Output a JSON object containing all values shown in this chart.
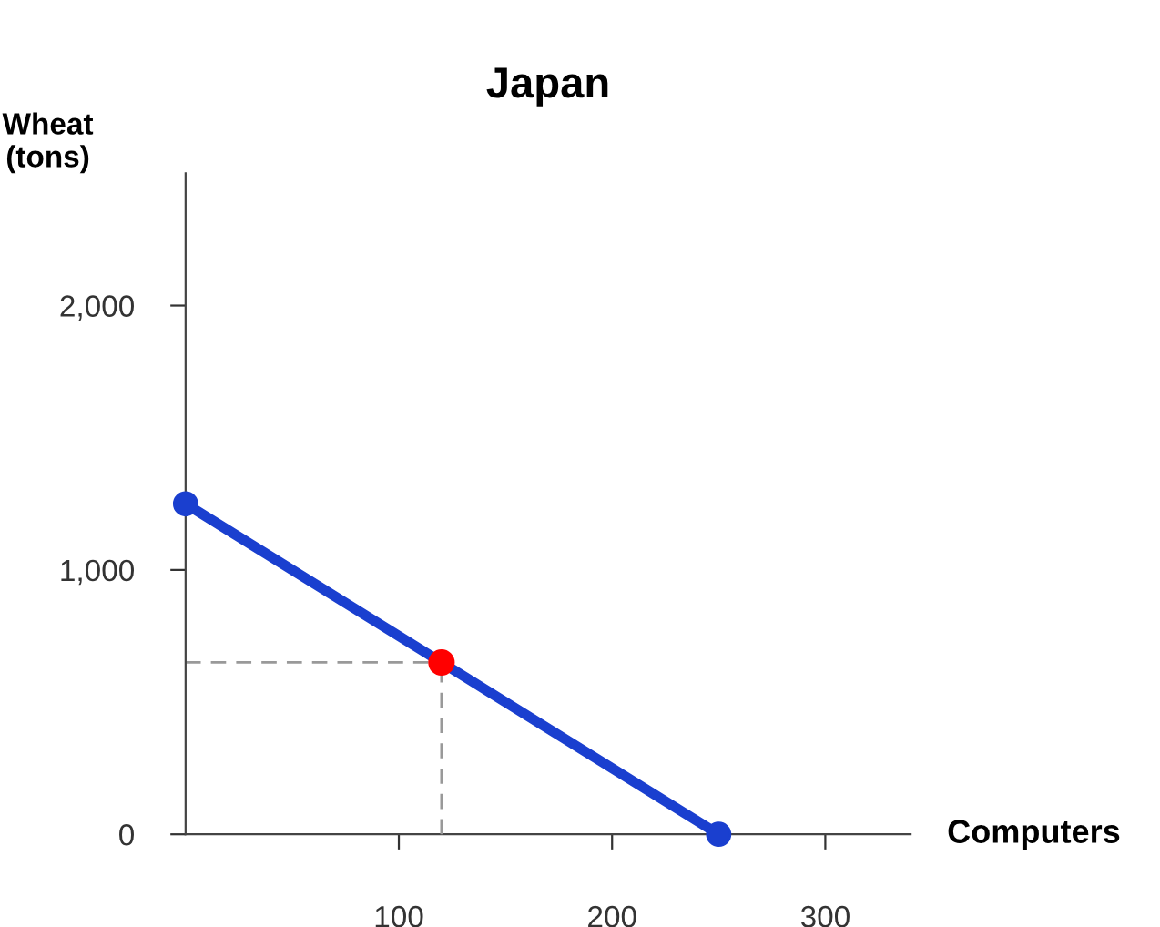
{
  "chart_data": {
    "type": "line",
    "title": "Japan",
    "xlabel": "Computers",
    "ylabel": "Wheat\n(tons)",
    "xlim": [
      0,
      340
    ],
    "ylim": [
      0,
      2500
    ],
    "xticks": [
      100,
      200,
      300
    ],
    "yticks": [
      {
        "value": 0,
        "label": "0"
      },
      {
        "value": 1000,
        "label": "1,000"
      },
      {
        "value": 2000,
        "label": "2,000"
      }
    ],
    "grid": false,
    "legend": false,
    "series": [
      {
        "x": [
          0,
          120
        ],
        "values": [
          650,
          650
        ],
        "color": "#999999",
        "line_style": "dashed",
        "marker": "none"
      },
      {
        "x": [
          120,
          120
        ],
        "values": [
          0,
          650
        ],
        "color": "#999999",
        "line_style": "dashed",
        "marker": "none"
      },
      {
        "x": [
          0,
          250
        ],
        "values": [
          1250,
          0
        ],
        "color": "#1a3fcf",
        "line_style": "solid",
        "marker": "circle"
      },
      {
        "type": "scatter",
        "x": [
          120
        ],
        "values": [
          650
        ],
        "color": "#ff0000",
        "marker": "circle"
      }
    ]
  }
}
